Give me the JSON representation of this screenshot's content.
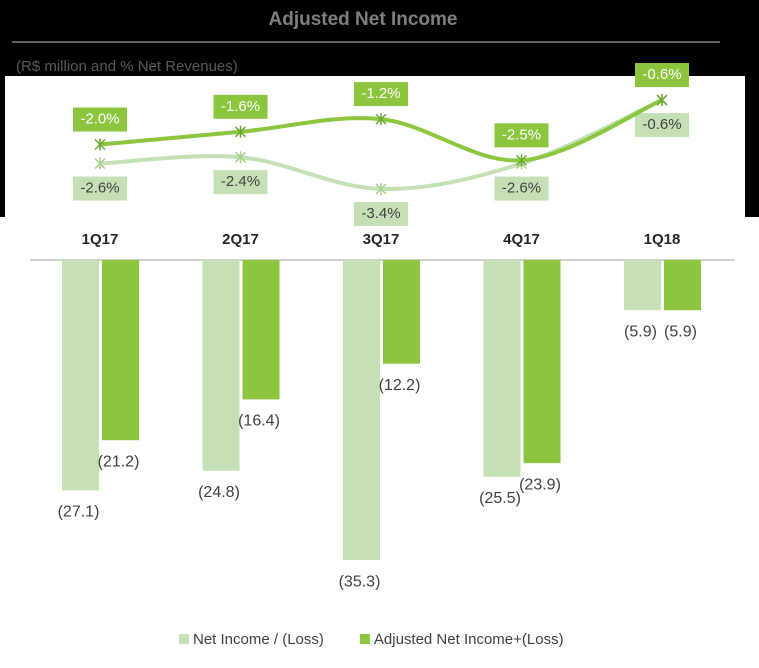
{
  "chart_data": {
    "type": "bar",
    "title": "Adjusted Net Income",
    "subtitle": "(R$ million and % Net Revenues)",
    "categories": [
      "1Q17",
      "2Q17",
      "3Q17",
      "4Q17",
      "1Q18"
    ],
    "ylim": [
      -36,
      0
    ],
    "y2lim": [
      -4,
      0
    ],
    "series": [
      {
        "name": "Net Income / (Loss)",
        "color": "#c5e0b4",
        "values": [
          -27.1,
          -24.8,
          -35.3,
          -25.5,
          -5.9
        ],
        "value_labels": [
          "(27.1)",
          "(24.8)",
          "(35.3)",
          "(25.5)",
          "(5.9)"
        ]
      },
      {
        "name": "Adjusted Net Income+(Loss)",
        "color": "#8cc63f",
        "values": [
          -21.2,
          -16.4,
          -12.2,
          -23.9,
          -5.9
        ],
        "value_labels": [
          "(21.2)",
          "(16.4)",
          "(12.2)",
          "(23.9)",
          "(5.9)"
        ]
      },
      {
        "type": "line",
        "axis": "y2",
        "color": "#c5e0b4",
        "label_position": "below",
        "values": [
          -2.6,
          -2.4,
          -3.4,
          -2.6,
          -0.6
        ],
        "value_labels": [
          "-2.6%",
          "-2.4%",
          "-3.4%",
          "-2.6%",
          "-0.6%"
        ]
      },
      {
        "type": "line",
        "axis": "y2",
        "color": "#8cc63f",
        "label_position": "above",
        "values": [
          -2.0,
          -1.6,
          -1.2,
          -2.5,
          -0.6
        ],
        "value_labels": [
          "-2.0%",
          "-1.6%",
          "-1.2%",
          "-2.5%",
          "-0.6%"
        ]
      }
    ]
  }
}
